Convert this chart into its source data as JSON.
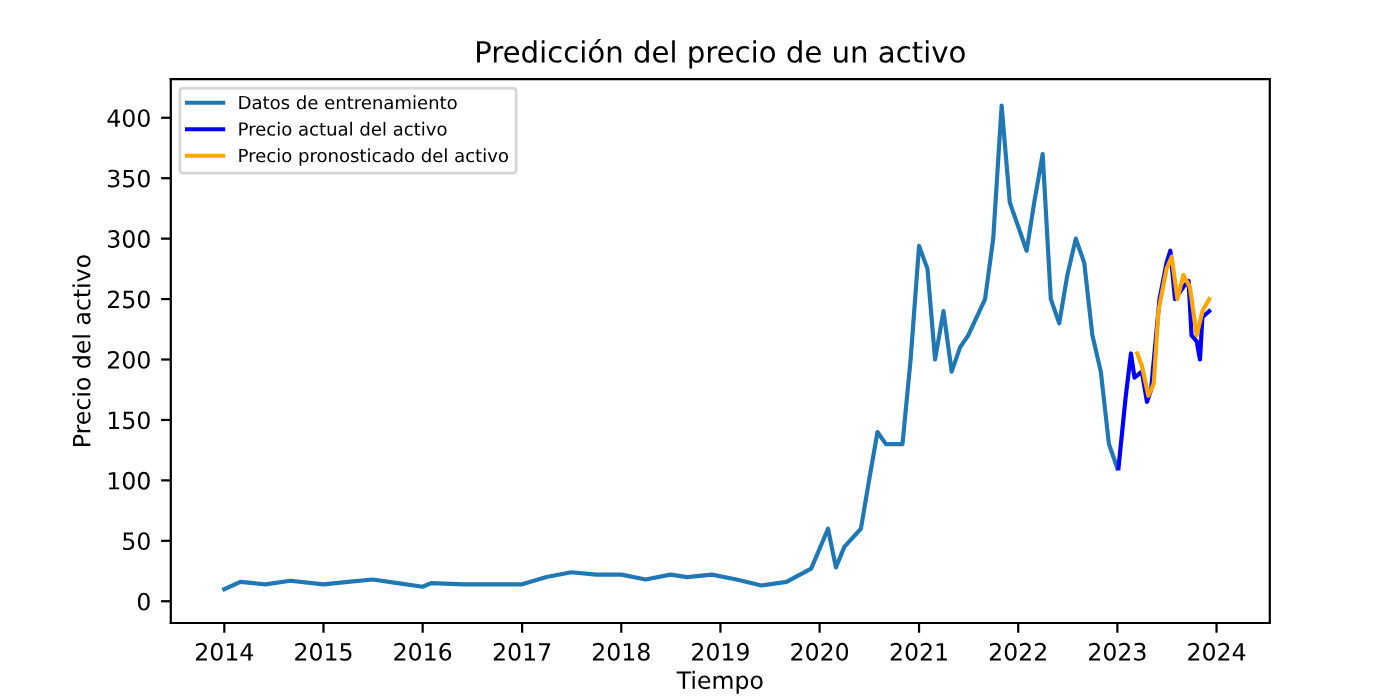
{
  "chart_data": {
    "type": "line",
    "title": "Predicción del precio de un activo",
    "xlabel": "Tiempo",
    "ylabel": "Precio del activo",
    "xlim": [
      "2013-06-18",
      "2024-07-15"
    ],
    "xticks": [
      {
        "value": "2014-01-01",
        "label": "2014"
      },
      {
        "value": "2015-01-01",
        "label": "2015"
      },
      {
        "value": "2016-01-01",
        "label": "2016"
      },
      {
        "value": "2017-01-01",
        "label": "2017"
      },
      {
        "value": "2018-01-01",
        "label": "2018"
      },
      {
        "value": "2019-01-01",
        "label": "2019"
      },
      {
        "value": "2020-01-01",
        "label": "2020"
      },
      {
        "value": "2021-01-01",
        "label": "2021"
      },
      {
        "value": "2022-01-01",
        "label": "2022"
      },
      {
        "value": "2023-01-01",
        "label": "2023"
      },
      {
        "value": "2024-01-01",
        "label": "2024"
      }
    ],
    "ylim": [
      -18,
      432
    ],
    "yticks": [
      0,
      50,
      100,
      150,
      200,
      250,
      300,
      350,
      400
    ],
    "legend": "top left",
    "grid": false,
    "line_style": "solid",
    "marker": "none",
    "series": [
      {
        "name": "Datos de entrenamiento",
        "color": "#1f77b4",
        "x": [
          "2014-01",
          "2014-03",
          "2014-06",
          "2014-09",
          "2015-01",
          "2015-04",
          "2015-07",
          "2015-10",
          "2016-01",
          "2016-02",
          "2016-06",
          "2016-09",
          "2017-01",
          "2017-04",
          "2017-07",
          "2017-10",
          "2018-01",
          "2018-04",
          "2018-07",
          "2018-09",
          "2018-12",
          "2019-03",
          "2019-06",
          "2019-09",
          "2019-12",
          "2020-02",
          "2020-03",
          "2020-04",
          "2020-06",
          "2020-07",
          "2020-08",
          "2020-09",
          "2020-11",
          "2020-12",
          "2021-01",
          "2021-02",
          "2021-03",
          "2021-04",
          "2021-05",
          "2021-06",
          "2021-07",
          "2021-09",
          "2021-10",
          "2021-11",
          "2021-12",
          "2022-01",
          "2022-02",
          "2022-03",
          "2022-04",
          "2022-05",
          "2022-06",
          "2022-07",
          "2022-08",
          "2022-09",
          "2022-10",
          "2022-11",
          "2022-12",
          "2023-01"
        ],
        "values": [
          10,
          16,
          14,
          17,
          14,
          16,
          18,
          15,
          12,
          15,
          14,
          14,
          14,
          20,
          24,
          22,
          22,
          18,
          22,
          20,
          22,
          18,
          13,
          16,
          27,
          60,
          28,
          45,
          60,
          100,
          140,
          130,
          130,
          200,
          294,
          275,
          200,
          240,
          190,
          210,
          220,
          250,
          300,
          410,
          330,
          310,
          290,
          330,
          370,
          250,
          230,
          270,
          300,
          280,
          220,
          190,
          130,
          110
        ]
      },
      {
        "name": "Precio actual del activo",
        "color": "#0000ff",
        "x": [
          "2023-01-05",
          "2023-02-01",
          "2023-02-20",
          "2023-03-05",
          "2023-04-01",
          "2023-04-20",
          "2023-05-05",
          "2023-06-05",
          "2023-07-01",
          "2023-07-15",
          "2023-08-01",
          "2023-09-01",
          "2023-09-20",
          "2023-10-01",
          "2023-10-20",
          "2023-11-01",
          "2023-11-10",
          "2023-12-05"
        ],
        "values": [
          110,
          170,
          205,
          185,
          190,
          165,
          175,
          250,
          280,
          290,
          250,
          260,
          265,
          220,
          215,
          200,
          235,
          240
        ]
      },
      {
        "name": "Precio pronosticado del activo",
        "color": "#ffa500",
        "x": [
          "2023-03-15",
          "2023-04-01",
          "2023-04-25",
          "2023-05-15",
          "2023-06-01",
          "2023-07-01",
          "2023-07-20",
          "2023-08-10",
          "2023-09-01",
          "2023-09-25",
          "2023-10-20",
          "2023-11-10",
          "2023-12-05"
        ],
        "values": [
          205,
          195,
          170,
          180,
          240,
          275,
          285,
          250,
          270,
          260,
          220,
          240,
          250
        ]
      }
    ]
  }
}
